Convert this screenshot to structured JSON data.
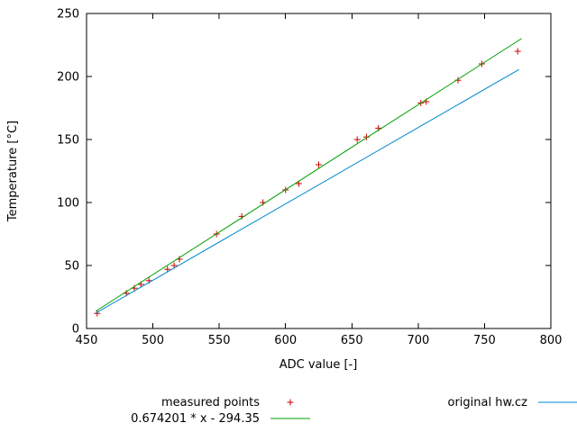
{
  "chart_data": {
    "type": "scatter",
    "title": "",
    "xlabel": "ADC value [-]",
    "ylabel": "Temperature [°C]",
    "xlim": [
      450,
      800
    ],
    "ylim": [
      0,
      250
    ],
    "xticks": [
      450,
      500,
      550,
      600,
      650,
      700,
      750,
      800
    ],
    "yticks": [
      0,
      50,
      100,
      150,
      200,
      250
    ],
    "grid": false,
    "legend_position": "below",
    "series": [
      {
        "name": "measured points",
        "type": "points",
        "marker": "plus",
        "color": "#cc0000",
        "points": [
          [
            458,
            12
          ],
          [
            480,
            28
          ],
          [
            486,
            32
          ],
          [
            491,
            35
          ],
          [
            497,
            38
          ],
          [
            511,
            47
          ],
          [
            516,
            50
          ],
          [
            520,
            55
          ],
          [
            548,
            75
          ],
          [
            567,
            89
          ],
          [
            583,
            100
          ],
          [
            600,
            110
          ],
          [
            610,
            115
          ],
          [
            625,
            130
          ],
          [
            654,
            150
          ],
          [
            661,
            152
          ],
          [
            670,
            159
          ],
          [
            702,
            179
          ],
          [
            706,
            180
          ],
          [
            730,
            197
          ],
          [
            748,
            210
          ],
          [
            775,
            220
          ]
        ]
      },
      {
        "name": "0.674201 * x - 294.35",
        "type": "line",
        "color": "#00a000",
        "slope": 0.674201,
        "intercept": -294.35,
        "x_range": [
          457,
          778
        ]
      },
      {
        "name": "original hw.cz",
        "type": "line",
        "color": "#0088cc",
        "slope": 0.606,
        "intercept": -264.7,
        "x_range": [
          457,
          776
        ]
      }
    ]
  }
}
